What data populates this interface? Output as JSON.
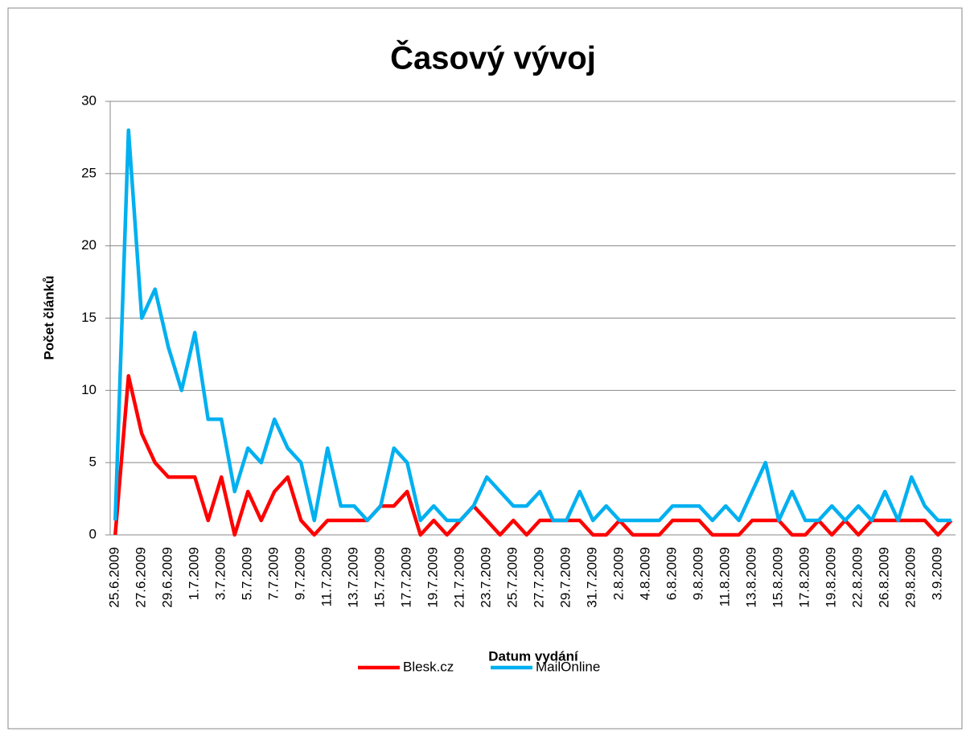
{
  "chart_data": {
    "type": "line",
    "title": "Časový vývoj",
    "xlabel": "Datum vydání",
    "ylabel": "Počet článků",
    "categories": [
      "25.6.2009",
      null,
      "27.6.2009",
      null,
      "29.6.2009",
      null,
      "1.7.2009",
      null,
      "3.7.2009",
      null,
      "5.7.2009",
      null,
      "7.7.2009",
      null,
      "9.7.2009",
      null,
      "11.7.2009",
      null,
      "13.7.2009",
      null,
      "15.7.2009",
      null,
      "17.7.2009",
      null,
      "19.7.2009",
      null,
      "21.7.2009",
      null,
      "23.7.2009",
      null,
      "25.7.2009",
      null,
      "27.7.2009",
      null,
      "29.7.2009",
      null,
      "31.7.2009",
      null,
      "2.8.2009",
      null,
      "4.8.2009",
      null,
      "6.8.2009",
      null,
      "9.8.2009",
      null,
      "11.8.2009",
      null,
      "13.8.2009",
      null,
      "15.8.2009",
      null,
      "17.8.2009",
      null,
      "19.8.2009",
      null,
      "22.8.2009",
      null,
      "26.8.2009",
      null,
      "29.8.2009",
      null,
      "3.9.2009",
      null
    ],
    "series": [
      {
        "name": "Blesk.cz",
        "color": "#ff0000",
        "values": [
          0,
          11,
          7,
          5,
          4,
          4,
          4,
          1,
          4,
          0,
          3,
          1,
          3,
          4,
          1,
          0,
          1,
          1,
          1,
          1,
          2,
          2,
          3,
          0,
          1,
          0,
          1,
          2,
          1,
          0,
          1,
          0,
          1,
          1,
          1,
          1,
          0,
          0,
          1,
          0,
          0,
          0,
          1,
          1,
          1,
          0,
          0,
          0,
          1,
          1,
          1,
          0,
          0,
          1,
          0,
          1,
          0,
          1,
          1,
          1,
          1,
          1,
          0,
          1
        ]
      },
      {
        "name": "MailOnline",
        "color": "#00b0f0",
        "values": [
          1,
          28,
          15,
          17,
          13,
          10,
          14,
          8,
          8,
          3,
          6,
          5,
          8,
          6,
          5,
          1,
          6,
          2,
          2,
          1,
          2,
          6,
          5,
          1,
          2,
          1,
          1,
          2,
          4,
          3,
          2,
          2,
          3,
          1,
          1,
          3,
          1,
          2,
          1,
          1,
          1,
          1,
          2,
          2,
          2,
          1,
          2,
          1,
          3,
          5,
          1,
          3,
          1,
          1,
          2,
          1,
          2,
          1,
          3,
          1,
          4,
          2,
          1,
          1
        ]
      }
    ],
    "ylim": [
      0,
      30
    ],
    "yticks": [
      0,
      5,
      10,
      15,
      20,
      25,
      30
    ],
    "grid": true,
    "legend": "bottom"
  }
}
